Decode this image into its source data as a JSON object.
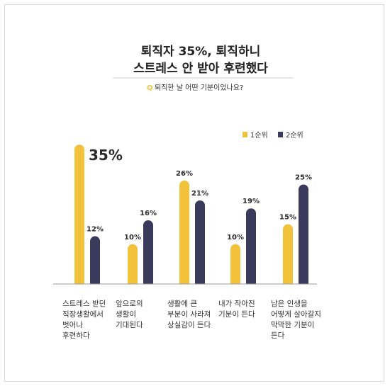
{
  "chart_data": {
    "type": "bar",
    "title_lines": [
      "퇴직자 35%, 퇴직하니",
      "스트레스 안 받아 후련했다"
    ],
    "question_marker": "Q",
    "question": "퇴직한 날 어떤 기분이었나요?",
    "categories": [
      [
        "스트레스 받던",
        "직장생활에서",
        "벗어나",
        "후련하다"
      ],
      [
        "앞으로의",
        "생활이",
        "기대된다"
      ],
      [
        "생활에 큰",
        "부분이 사라져",
        "상실감이 든다"
      ],
      [
        "내가 작아진",
        "기분이 든다"
      ],
      [
        "남은 인생을",
        "어떻게 살아갈지",
        "막막한 기분이",
        "든다"
      ]
    ],
    "series": [
      {
        "name": "1순위",
        "values": [
          35,
          10,
          26,
          10,
          15
        ],
        "labels": [
          "35%",
          "10%",
          "26%",
          "10%",
          "15%"
        ]
      },
      {
        "name": "2순위",
        "values": [
          12,
          16,
          21,
          19,
          25
        ],
        "labels": [
          "12%",
          "16%",
          "21%",
          "19%",
          "25%"
        ]
      }
    ],
    "colors": {
      "1순위": "#f2c33a",
      "2순위": "#3a3a5c",
      "axis": "#999999",
      "title_rule": "#cccccc",
      "question_marker": "#f2c33a"
    },
    "highlight_value_index": 0,
    "ylim": [
      0,
      37
    ],
    "legend_position": "top-right",
    "grid": false
  }
}
